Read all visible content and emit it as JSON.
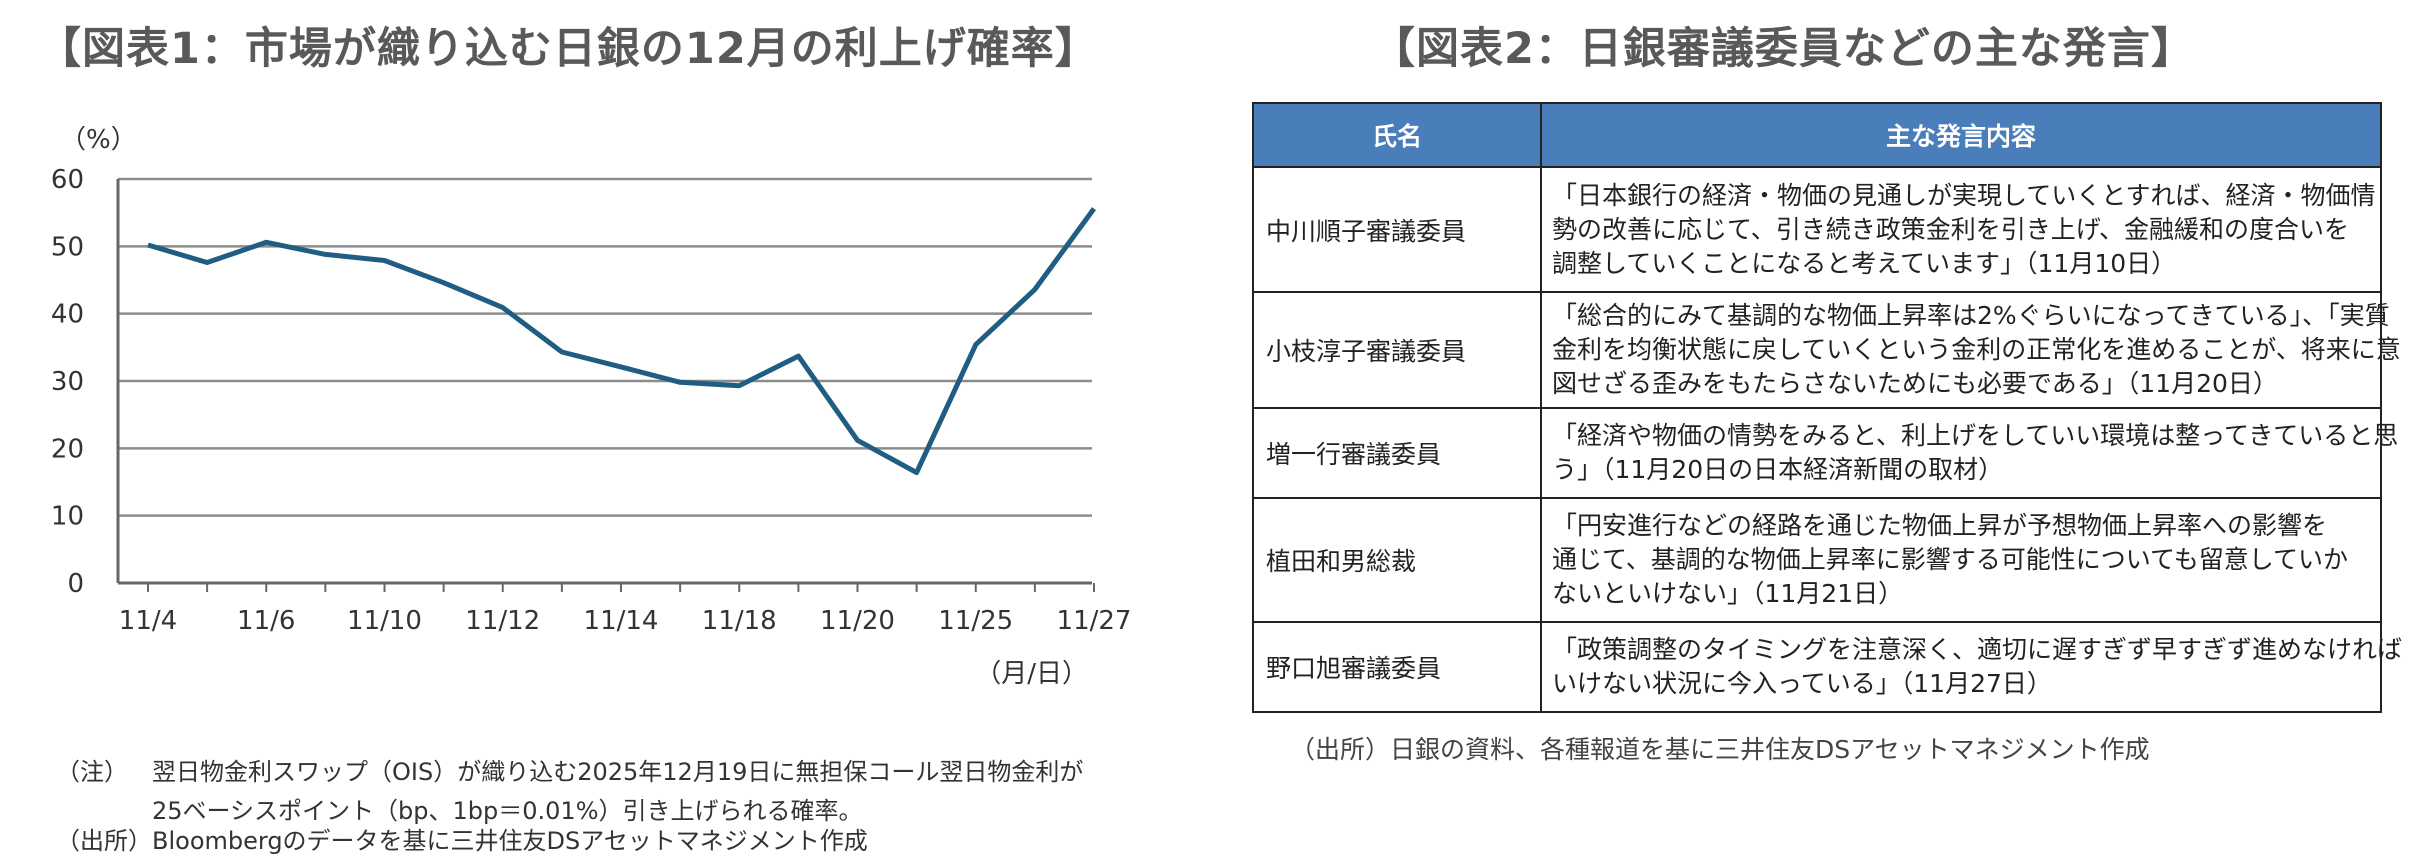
{
  "figure1": {
    "title": "【図表1：市場が織り込む日銀の12月の利上げ確率】",
    "chart_data": {
      "type": "line",
      "ylabel": "（%）",
      "xlabel": "（月/日）",
      "ylim": [
        0,
        60
      ],
      "yticks": [
        "0",
        "10",
        "20",
        "30",
        "40",
        "50",
        "60"
      ],
      "xtick_labels": [
        "11/4",
        "11/6",
        "11/10",
        "11/12",
        "11/14",
        "11/18",
        "11/20",
        "11/25",
        "11/27"
      ],
      "grid": true,
      "series": [
        {
          "color": "#1f5e82",
          "values": [
            50.2,
            47.6,
            50.6,
            48.8,
            47.9,
            44.6,
            40.9,
            34.3,
            32.1,
            29.8,
            29.3,
            33.7,
            21.2,
            16.4,
            35.4,
            43.6,
            55.6
          ]
        }
      ]
    },
    "notes": [
      {
        "key": "（注）",
        "lines": [
          "翌日物金利スワップ（OIS）が織り込む2025年12月19日に無担保コール翌日物金利が",
          "25ベーシスポイント（bp、1bp＝0.01%）引き上げられる確率。"
        ]
      },
      {
        "key": "（出所）",
        "lines": [
          "Bloombergのデータを基に三井住友DSアセットマネジメント作成"
        ]
      }
    ]
  },
  "figure2": {
    "title": "【図表2：日銀審議委員などの主な発言】",
    "headers": [
      "氏名",
      "主な発言内容"
    ],
    "rows": [
      {
        "name": "中川順子審議委員",
        "lines": [
          "「日本銀行の経済・物価の見通しが実現していくとすれば、経済・物価情",
          "勢の改善に応じて、引き続き政策金利を引き上げ、金融緩和の度合いを",
          "調整していくことになると考えています」（11月10日）"
        ]
      },
      {
        "name": "小枝淳子審議委員",
        "lines": [
          "「総合的にみて基調的な物価上昇率は2%ぐらいになってきている」、「実質",
          "金利を均衡状態に戻していくという金利の正常化を進めることが、将来に意",
          "図せざる歪みをもたらさないためにも必要である」（11月20日）"
        ]
      },
      {
        "name": "増一行審議委員",
        "lines": [
          "「経済や物価の情勢をみると、利上げをしていい環境は整ってきていると思",
          "う」（11月20日の日本経済新聞の取材）"
        ]
      },
      {
        "name": "植田和男総裁",
        "lines": [
          "「円安進行などの経路を通じた物価上昇が予想物価上昇率への影響を",
          "通じて、基調的な物価上昇率に影響する可能性についても留意していか",
          "ないといけない」（11月21日）"
        ]
      },
      {
        "name": "野口旭審議委員",
        "lines": [
          "「政策調整のタイミングを注意深く、適切に遅すぎず早すぎず進めなければ",
          "いけない状況に今入っている」（11月27日）"
        ]
      }
    ],
    "source": "（出所）日銀の資料、各種報道を基に三井住友DSアセットマネジメント作成"
  }
}
